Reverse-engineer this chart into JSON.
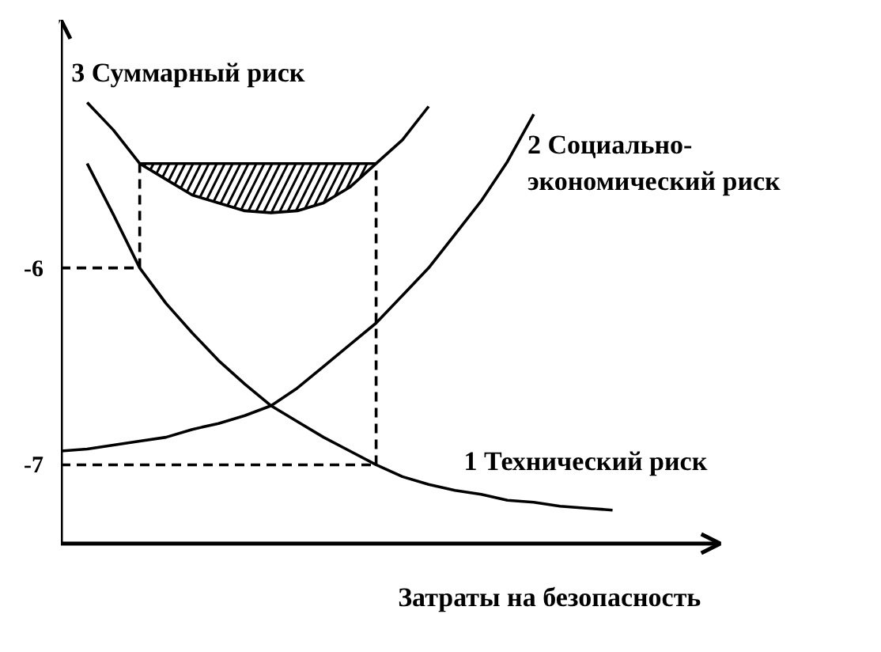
{
  "chart_data": {
    "type": "line",
    "xlabel": "Затраты на безопасность",
    "categories": [
      null,
      null,
      null,
      null,
      null,
      null,
      null,
      null,
      null,
      null,
      null,
      null,
      null,
      null,
      null,
      null,
      null,
      null,
      null,
      null,
      null,
      null,
      null,
      null,
      null,
      null
    ],
    "ylim": [
      -7.4,
      -4.74
    ],
    "yticks": [
      {
        "value": -7,
        "label": "-7"
      },
      {
        "value": -6,
        "label": "-6"
      }
    ],
    "grid": false,
    "series": [
      {
        "name": "1 Технический риск",
        "color": "#000000",
        "values": [
          null,
          -5.47,
          -5.73,
          -6.0,
          -6.18,
          -6.33,
          -6.47,
          -6.59,
          -6.7,
          -6.78,
          -6.86,
          -6.93,
          -7.0,
          -7.06,
          -7.1,
          -7.13,
          -7.15,
          -7.18,
          -7.19,
          -7.21,
          -7.22,
          -7.23,
          null,
          null,
          null,
          null
        ]
      },
      {
        "name": "2 Социально-\nэкономический риск",
        "color": "#000000",
        "values": [
          -6.93,
          -6.92,
          -6.9,
          -6.88,
          -6.86,
          -6.82,
          -6.79,
          -6.75,
          -6.7,
          -6.61,
          -6.5,
          -6.39,
          -6.28,
          -6.14,
          -6.0,
          -5.83,
          -5.66,
          -5.46,
          -5.22,
          null,
          null,
          null,
          null,
          null,
          null,
          null
        ]
      },
      {
        "name": "3 Суммарный риск",
        "color": "#000000",
        "values": [
          null,
          -5.16,
          -5.3,
          -5.47,
          -5.55,
          -5.63,
          -5.67,
          -5.71,
          -5.72,
          -5.71,
          -5.67,
          -5.59,
          -5.47,
          -5.35,
          -5.18,
          null,
          null,
          null,
          null,
          null,
          null,
          null,
          null,
          null,
          null,
          null
        ],
        "lower": [
          null,
          null,
          null,
          -5.47,
          -5.55,
          -5.63,
          -5.67,
          -5.71,
          -5.72,
          -5.71,
          -5.67,
          -5.59,
          -5.47,
          null,
          null,
          null,
          null,
          null,
          null,
          null,
          null,
          null,
          null,
          null,
          null,
          null
        ],
        "upper": [
          null,
          null,
          null,
          -5.47,
          -5.47,
          -5.47,
          -5.47,
          -5.47,
          -5.47,
          -5.47,
          -5.47,
          -5.47,
          -5.47,
          null,
          null,
          null,
          null,
          null,
          null,
          null,
          null,
          null,
          null,
          null,
          null,
          null
        ]
      },
      {
        "color": "#000000",
        "values": [
          null,
          null,
          null,
          -5.47,
          -5.47,
          -5.47,
          -5.47,
          -5.47,
          -5.47,
          -5.47,
          -5.47,
          -5.47,
          -5.47,
          null,
          null,
          null,
          null,
          null,
          null,
          null,
          null,
          null,
          null,
          null,
          null,
          null
        ]
      },
      {
        "color": "#000000",
        "line_style": "dashed",
        "values": [
          -6,
          -6,
          -6,
          -6,
          null,
          null,
          null,
          null,
          null,
          null,
          null,
          null,
          null,
          null,
          null,
          null,
          null,
          null,
          null,
          null,
          null,
          null,
          null,
          null,
          null,
          null
        ],
        "errors": [
          null,
          null,
          null,
          [
            -6,
            -5.47
          ],
          null,
          null,
          null,
          null,
          null,
          null,
          null,
          null,
          null,
          null,
          null,
          null,
          null,
          null,
          null,
          null,
          null,
          null,
          null,
          null,
          null,
          null
        ]
      },
      {
        "color": "#000000",
        "line_style": "dashed",
        "values": [
          -7,
          -7,
          -7,
          -7,
          -7,
          -7,
          -7,
          -7,
          -7,
          -7,
          -7,
          -7,
          -7,
          null,
          null,
          null,
          null,
          null,
          null,
          null,
          null,
          null,
          null,
          null,
          null,
          null
        ],
        "errors": [
          null,
          null,
          null,
          null,
          null,
          null,
          null,
          null,
          null,
          null,
          null,
          null,
          [
            -7,
            -5.47
          ],
          null,
          null,
          null,
          null,
          null,
          null,
          null,
          null,
          null,
          null,
          null,
          null,
          null
        ]
      }
    ]
  }
}
